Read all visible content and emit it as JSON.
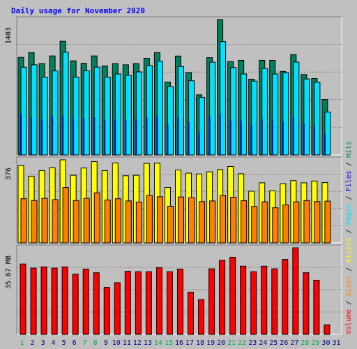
{
  "chart_data": {
    "type": "bar",
    "title": "Daily usage for November 2020",
    "categories": [
      "1",
      "2",
      "3",
      "4",
      "5",
      "6",
      "7",
      "8",
      "9",
      "10",
      "11",
      "12",
      "13",
      "14",
      "15",
      "16",
      "17",
      "18",
      "19",
      "20",
      "21",
      "22",
      "23",
      "24",
      "25",
      "26",
      "27",
      "28",
      "29",
      "30",
      "31"
    ],
    "weekend_highlight_days": [
      "1",
      "7",
      "8",
      "14",
      "15",
      "21",
      "22",
      "28",
      "29"
    ],
    "top_panel": {
      "axis_label": "1403",
      "ylim": [
        0,
        1403
      ],
      "series": [
        {
          "name": "Hits",
          "color": "#00805c",
          "values": [
            1011,
            1061,
            947,
            1026,
            1178,
            975,
            950,
            1026,
            923,
            947,
            934,
            947,
            1001,
            1060,
            755,
            1025,
            853,
            623,
            1008,
            1403,
            968,
            980,
            785,
            980,
            980,
            866,
            1040,
            833,
            792,
            574,
            0
          ]
        },
        {
          "name": "Files",
          "color": "#00e0ff",
          "values": [
            909,
            934,
            807,
            871,
            1065,
            807,
            872,
            910,
            807,
            839,
            825,
            861,
            926,
            971,
            708,
            917,
            769,
            597,
            961,
            1174,
            906,
            839,
            765,
            896,
            839,
            851,
            962,
            787,
            753,
            444,
            0
          ]
        },
        {
          "name": "Pages",
          "color": "#0000b0",
          "values": [
            430,
            390,
            370,
            405,
            400,
            370,
            380,
            390,
            360,
            370,
            365,
            375,
            390,
            400,
            315,
            390,
            340,
            230,
            395,
            420,
            360,
            355,
            310,
            370,
            360,
            345,
            385,
            325,
            310,
            220,
            0
          ]
        }
      ]
    },
    "middle_panel": {
      "axis_label": "376",
      "ylim": [
        0,
        376
      ],
      "series": [
        {
          "name": "Visits",
          "color": "#ffff00",
          "values": [
            350,
            302,
            327,
            340,
            376,
            306,
            339,
            368,
            327,
            362,
            304,
            306,
            360,
            361,
            251,
            330,
            316,
            312,
            322,
            332,
            346,
            313,
            234,
            272,
            236,
            268,
            282,
            272,
            280,
            273,
            0
          ]
        },
        {
          "name": "Sites",
          "color": "#ff8000",
          "values": [
            200,
            192,
            202,
            196,
            251,
            192,
            202,
            227,
            194,
            200,
            190,
            185,
            215,
            209,
            166,
            208,
            205,
            187,
            190,
            215,
            207,
            191,
            165,
            186,
            159,
            172,
            186,
            192,
            187,
            189,
            0
          ]
        }
      ]
    },
    "bottom_panel": {
      "axis_label": "35.67 MB",
      "ylim": [
        0,
        35.67
      ],
      "series": [
        {
          "name": "Volume",
          "color": "#ff0000",
          "values": [
            29.0,
            27.3,
            27.8,
            27.3,
            27.8,
            24.8,
            26.9,
            25.4,
            19.4,
            21.3,
            26.0,
            25.8,
            25.8,
            27.5,
            25.8,
            26.9,
            17.4,
            14.3,
            27.0,
            30.5,
            31.8,
            28.1,
            25.8,
            28.1,
            27.0,
            30.9,
            35.67,
            25.4,
            22.3,
            3.9,
            0
          ]
        }
      ]
    },
    "right_legend": {
      "text": "Volume / Sites / Visits / Pages / Files / Hits",
      "items": [
        {
          "text": "Volume",
          "color": "#ff0000"
        },
        {
          "text": " / ",
          "color": "#000000"
        },
        {
          "text": "Sites",
          "color": "#ff8000"
        },
        {
          "text": " / ",
          "color": "#000000"
        },
        {
          "text": "Visits",
          "color": "#ffff00"
        },
        {
          "text": " / ",
          "color": "#000000"
        },
        {
          "text": "Pages",
          "color": "#00e0ff"
        },
        {
          "text": " / ",
          "color": "#000000"
        },
        {
          "text": "Files",
          "color": "#0000ff"
        },
        {
          "text": " / ",
          "color": "#000000"
        },
        {
          "text": "Hits",
          "color": "#00805c"
        }
      ]
    },
    "colors": {
      "background": "#c0c0c0",
      "title": "#0000ff",
      "grid": "#808080",
      "axis": "#000000",
      "panel_shadow": "#808080",
      "panel_highlight": "#ffffff",
      "weekday_label": "#000080",
      "weekend_label": "#00aa55"
    },
    "grid": true
  }
}
